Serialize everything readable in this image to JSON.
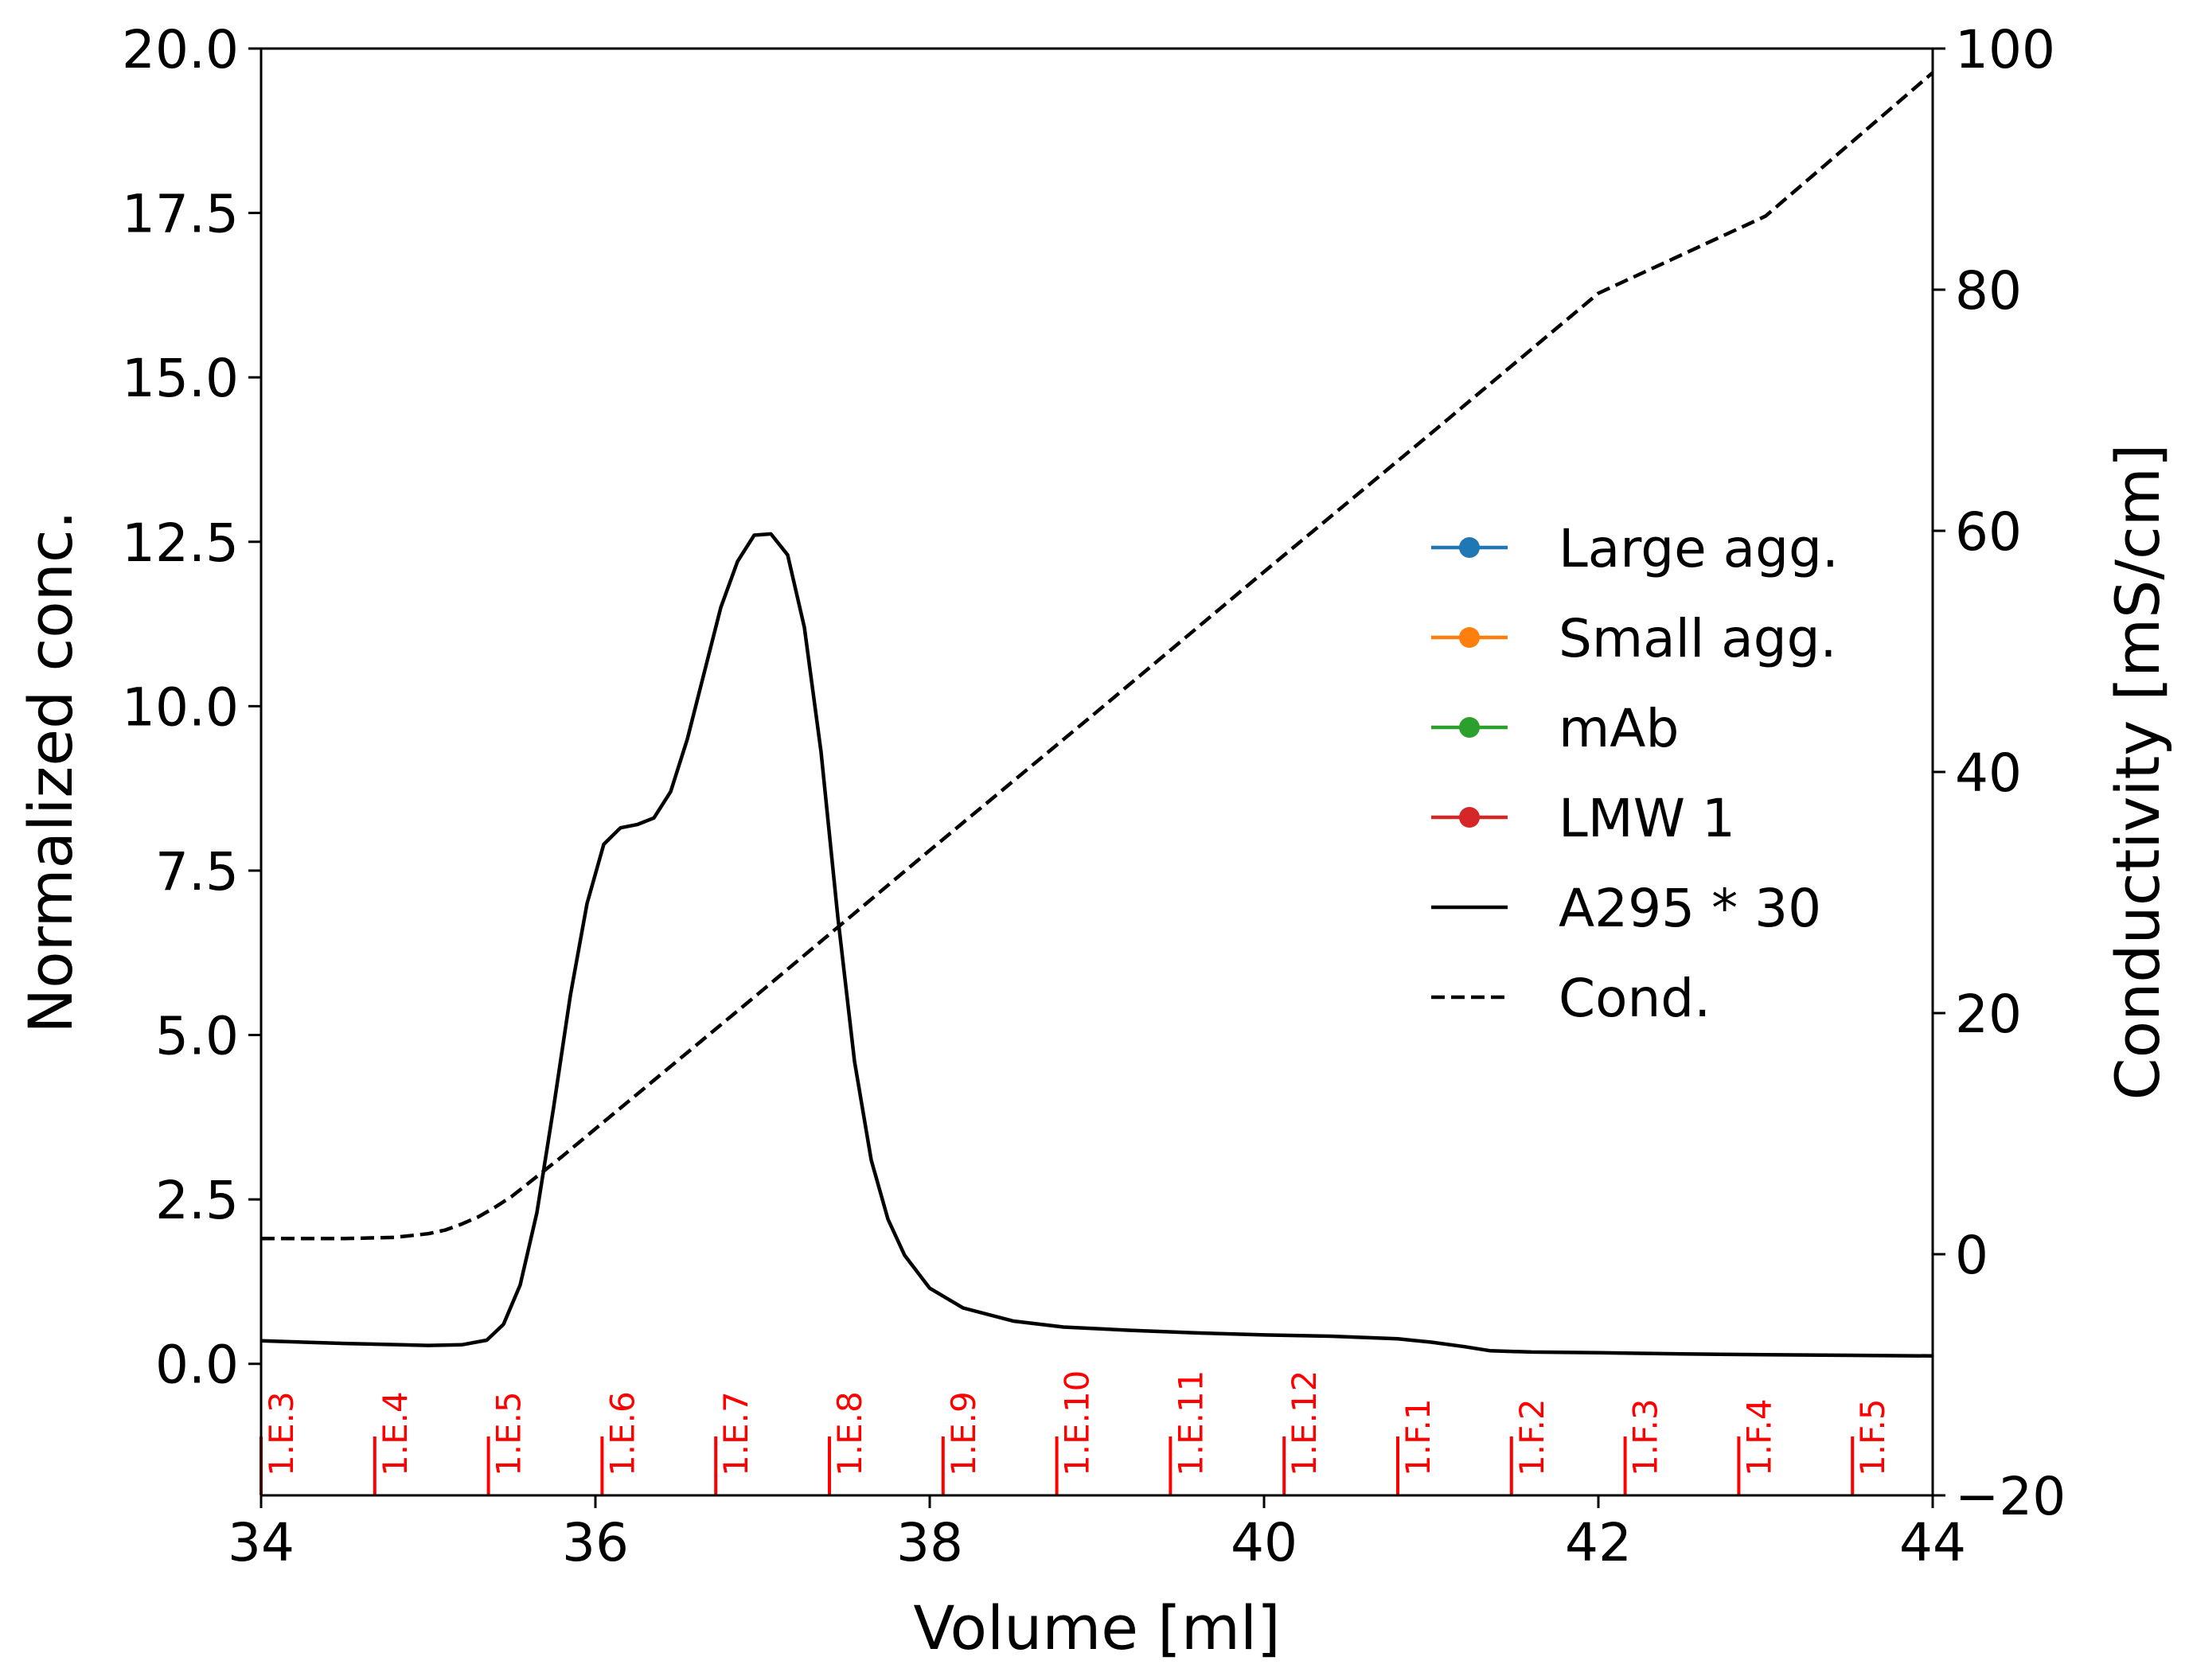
{
  "chart_data": {
    "type": "line",
    "xlabel": "Volume [ml]",
    "ylabel": "Normalized conc.",
    "y2label": "Conductivity [mS/cm]",
    "xlim": [
      34,
      44
    ],
    "ylim": [
      -2.0,
      20.0
    ],
    "y2lim": [
      -20,
      100
    ],
    "x_ticks": [
      34,
      36,
      38,
      40,
      42,
      44
    ],
    "x_tick_labels": [
      "34",
      "36",
      "38",
      "40",
      "42",
      "44"
    ],
    "y_ticks": [
      0.0,
      2.5,
      5.0,
      7.5,
      10.0,
      12.5,
      15.0,
      17.5,
      20.0
    ],
    "y_tick_labels": [
      "0.0",
      "2.5",
      "5.0",
      "7.5",
      "10.0",
      "12.5",
      "15.0",
      "17.5",
      "20.0"
    ],
    "y2_ticks": [
      -20,
      0,
      20,
      40,
      60,
      80,
      100
    ],
    "y2_tick_labels": [
      "−20",
      "0",
      "20",
      "40",
      "60",
      "80",
      "100"
    ],
    "grid": false,
    "legend_position": "center-right",
    "legend": [
      {
        "label": "Large agg.",
        "color": "#1f77b4",
        "style": "line-marker"
      },
      {
        "label": "Small agg.",
        "color": "#ff7f0e",
        "style": "line-marker"
      },
      {
        "label": "mAb",
        "color": "#2ca02c",
        "style": "line-marker"
      },
      {
        "label": "LMW 1",
        "color": "#d62728",
        "style": "line-marker"
      },
      {
        "label": "A295 * 30",
        "color": "#000000",
        "style": "solid"
      },
      {
        "label": "Cond.",
        "color": "#000000",
        "style": "dashed"
      }
    ],
    "series": [
      {
        "name": "A295 * 30",
        "axis": "left",
        "color": "#000000",
        "style": "solid",
        "x": [
          34.0,
          34.5,
          35.0,
          35.2,
          35.35,
          35.45,
          35.55,
          35.65,
          35.75,
          35.85,
          35.95,
          36.05,
          36.15,
          36.25,
          36.35,
          36.45,
          36.55,
          36.65,
          36.75,
          36.85,
          36.95,
          37.05,
          37.15,
          37.25,
          37.35,
          37.45,
          37.55,
          37.65,
          37.75,
          37.85,
          38.0,
          38.2,
          38.5,
          38.8,
          39.2,
          39.6,
          40.0,
          40.4,
          40.8,
          41.0,
          41.2,
          41.35,
          41.6,
          42.0,
          42.5,
          43.0,
          43.5,
          44.0
        ],
        "y": [
          0.35,
          0.31,
          0.28,
          0.29,
          0.36,
          0.6,
          1.2,
          2.3,
          3.9,
          5.6,
          7.0,
          7.9,
          8.15,
          8.2,
          8.3,
          8.7,
          9.5,
          10.5,
          11.5,
          12.2,
          12.6,
          12.62,
          12.3,
          11.2,
          9.3,
          6.8,
          4.6,
          3.1,
          2.2,
          1.65,
          1.15,
          0.85,
          0.65,
          0.56,
          0.51,
          0.47,
          0.44,
          0.42,
          0.38,
          0.33,
          0.26,
          0.2,
          0.18,
          0.17,
          0.15,
          0.14,
          0.13,
          0.12
        ]
      },
      {
        "name": "Cond.",
        "axis": "right",
        "color": "#000000",
        "style": "dashed",
        "x": [
          34.0,
          34.5,
          34.8,
          35.0,
          35.1,
          35.2,
          35.3,
          35.4,
          35.5,
          35.6,
          35.8,
          36.0,
          37.0,
          38.0,
          39.0,
          40.0,
          41.0,
          42.0,
          43.0,
          44.0
        ],
        "y": [
          1.3,
          1.3,
          1.4,
          1.7,
          2.0,
          2.5,
          3.1,
          3.9,
          4.8,
          5.9,
          8.1,
          10.4,
          21.9,
          33.5,
          45.0,
          56.6,
          68.1,
          79.7,
          86.1,
          98.0
        ]
      }
    ],
    "fractions": [
      {
        "label": "1.E.3",
        "x": 34.0
      },
      {
        "label": "1.E.4",
        "x": 34.68
      },
      {
        "label": "1.E.5",
        "x": 35.36
      },
      {
        "label": "1.E.6",
        "x": 36.04
      },
      {
        "label": "1.E.7",
        "x": 36.72
      },
      {
        "label": "1.E.8",
        "x": 37.4
      },
      {
        "label": "1.E.9",
        "x": 38.08
      },
      {
        "label": "1.E.10",
        "x": 38.76
      },
      {
        "label": "1.E.11",
        "x": 39.44
      },
      {
        "label": "1.E.12",
        "x": 40.12
      },
      {
        "label": "1.F.1",
        "x": 40.8
      },
      {
        "label": "1.F.2",
        "x": 41.48
      },
      {
        "label": "1.F.3",
        "x": 42.16
      },
      {
        "label": "1.F.4",
        "x": 42.84
      },
      {
        "label": "1.F.5",
        "x": 43.52
      }
    ],
    "fraction_color": "#ff0000"
  }
}
